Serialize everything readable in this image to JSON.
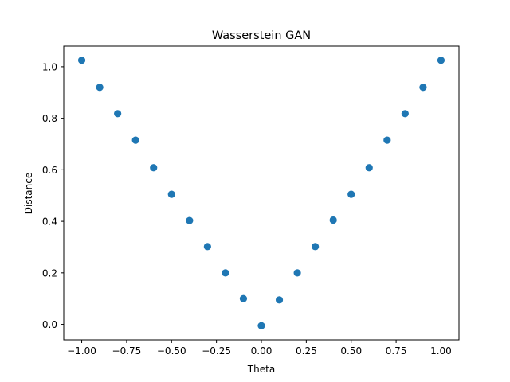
{
  "chart_data": {
    "type": "scatter",
    "title": "Wasserstein GAN",
    "xlabel": "Theta",
    "ylabel": "Distance",
    "xlim": [
      -1.1,
      1.1
    ],
    "ylim": [
      -0.06,
      1.08
    ],
    "xticks": [
      -1.0,
      -0.75,
      -0.5,
      -0.25,
      0.0,
      0.25,
      0.5,
      0.75,
      1.0
    ],
    "xtick_labels": [
      "−1.00",
      "−0.75",
      "−0.50",
      "−0.25",
      "0.00",
      "0.25",
      "0.50",
      "0.75",
      "1.00"
    ],
    "yticks": [
      0.0,
      0.2,
      0.4,
      0.6,
      0.8,
      1.0
    ],
    "ytick_labels": [
      "0.0",
      "0.2",
      "0.4",
      "0.6",
      "0.8",
      "1.0"
    ],
    "grid": false,
    "marker_color": "#1f77b4",
    "x": [
      -1.0,
      -0.9,
      -0.8,
      -0.7,
      -0.6,
      -0.5,
      -0.4,
      -0.3,
      -0.2,
      -0.1,
      0.0,
      0.1,
      0.2,
      0.3,
      0.4,
      0.5,
      0.6,
      0.7,
      0.8,
      0.9,
      1.0
    ],
    "y": [
      1.025,
      0.92,
      0.818,
      0.715,
      0.608,
      0.505,
      0.403,
      0.302,
      0.2,
      0.1,
      -0.005,
      0.095,
      0.2,
      0.302,
      0.405,
      0.505,
      0.608,
      0.715,
      0.818,
      0.92,
      1.025
    ]
  }
}
